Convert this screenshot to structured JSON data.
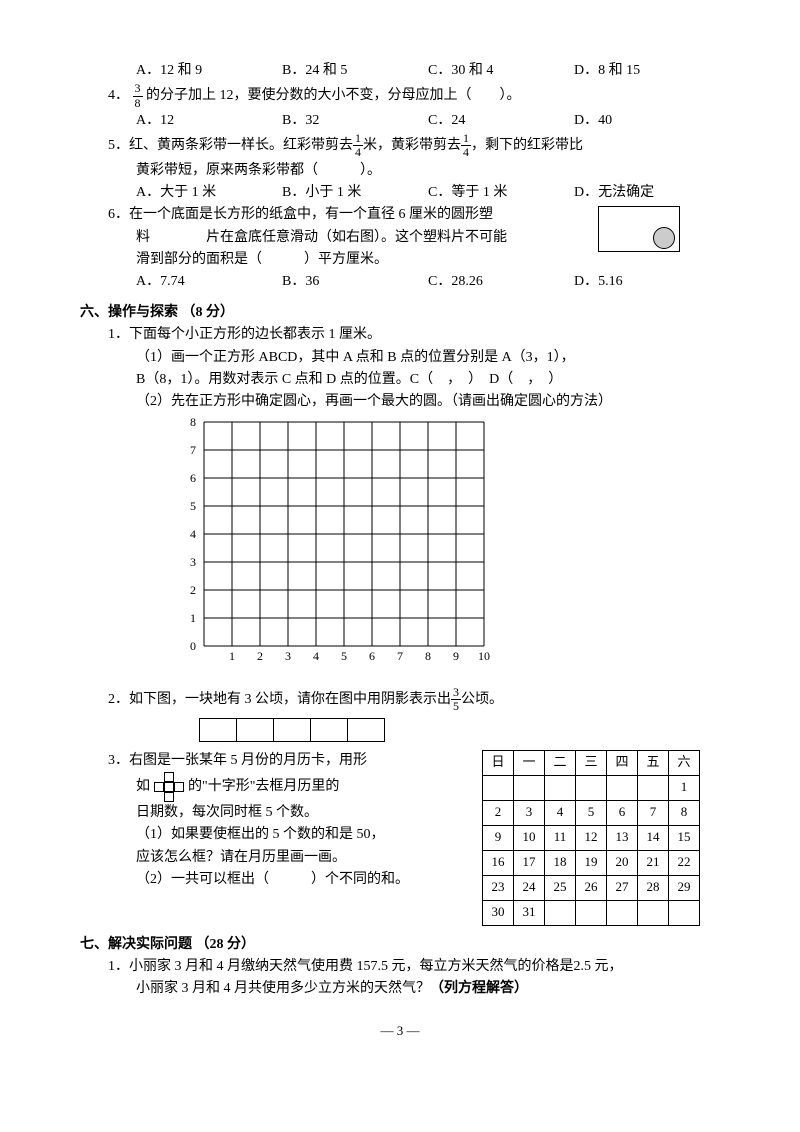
{
  "q3opts": {
    "a": "A．12 和 9",
    "b": "B．24 和 5",
    "c": "C．30 和 4",
    "d": "D．8 和 15"
  },
  "q4": {
    "pre": "4．",
    "frac_n": "3",
    "frac_d": "8",
    "text": "的分子加上 12，要使分数的大小不变，分母应加上（　　）。",
    "a": "A．12",
    "b": "B．32",
    "c": "C．24",
    "d": "D．40"
  },
  "q5": {
    "line1a": "5．红、黄两条彩带一样长。红彩带剪去",
    "f1n": "1",
    "f1d": "4",
    "line1b": "米，黄彩带剪去",
    "f2n": "1",
    "f2d": "4",
    "line1c": "，剩下的红彩带比",
    "line2": "黄彩带短，原来两条彩带都（　　　）。",
    "a": "A．大于 1 米",
    "b": "B．小于 1 米",
    "c": "C．等于 1 米",
    "d": "D．无法确定"
  },
  "q6": {
    "l1": "6．在一个底面是长方形的纸盒中，有一个直径 6 厘米的圆形塑",
    "l2": "料　　　　片在盒底任意滑动（如右图）。这个塑料片不可能",
    "l3": "滑到部分的面积是（　　　）平方厘米。",
    "a": "A．7.74",
    "b": "B．36",
    "c": "C．28.26",
    "d": "D．5.16"
  },
  "sec6": "六、操作与探索 （8 分）",
  "s6q1": {
    "t": "1．下面每个小正方形的边长都表示 1 厘米。",
    "p1": "（1）画一个正方形 ABCD，其中 A 点和 B 点的位置分别是 A（3，1），",
    "p1b": "B（8，1）。用数对表示 C 点和 D 点的位置。C（　，　）　D（　，　）",
    "p2": "（2）先在正方形中确定圆心，再画一个最大的圆。（请画出确定圆心的方法）",
    "ylabels": [
      "8",
      "7",
      "6",
      "5",
      "4",
      "3",
      "2",
      "1",
      "0"
    ],
    "xlabels": [
      "1",
      "2",
      "3",
      "4",
      "5",
      "6",
      "7",
      "8",
      "9",
      "10"
    ]
  },
  "s6q2": {
    "a": "2．如下图，一块地有 3 公顷，请你在图中用阴影表示出",
    "fn": "3",
    "fd": "5",
    "b": "公顷。"
  },
  "s6q3": {
    "l1": "3．右图是一张某年 5 月份的月历卡，用形",
    "l2": "如　　　　的\"十字形\"去框月历里的",
    "l3": "日期数，每次同时框 5 个数。",
    "l4": "（1）如果要使框出的 5 个数的和是 50，",
    "l5": "应该怎么框？请在月历里画一画。",
    "l6": "（2）一共可以框出（　　　）个不同的和。",
    "header": [
      "日",
      "一",
      "二",
      "三",
      "四",
      "五",
      "六"
    ],
    "rows": [
      [
        "",
        "",
        "",
        "",
        "",
        "",
        "1"
      ],
      [
        "2",
        "3",
        "4",
        "5",
        "6",
        "7",
        "8"
      ],
      [
        "9",
        "10",
        "11",
        "12",
        "13",
        "14",
        "15"
      ],
      [
        "16",
        "17",
        "18",
        "19",
        "20",
        "21",
        "22"
      ],
      [
        "23",
        "24",
        "25",
        "26",
        "27",
        "28",
        "29"
      ],
      [
        "30",
        "31",
        "",
        "",
        "",
        "",
        ""
      ]
    ]
  },
  "sec7": "七、解决实际问题 （28 分）",
  "s7q1": {
    "l1": "1．小丽家 3 月和 4 月缴纳天然气使用费 157.5 元，每立方米天然气的价格是2.5 元，",
    "l2a": "小丽家 3 月和 4 月共使用多少立方米的天然气？",
    "l2b": "（列方程解答）"
  },
  "page": "— 3 —",
  "grid": {
    "cols": 10,
    "rows": 8,
    "cell": 28
  }
}
